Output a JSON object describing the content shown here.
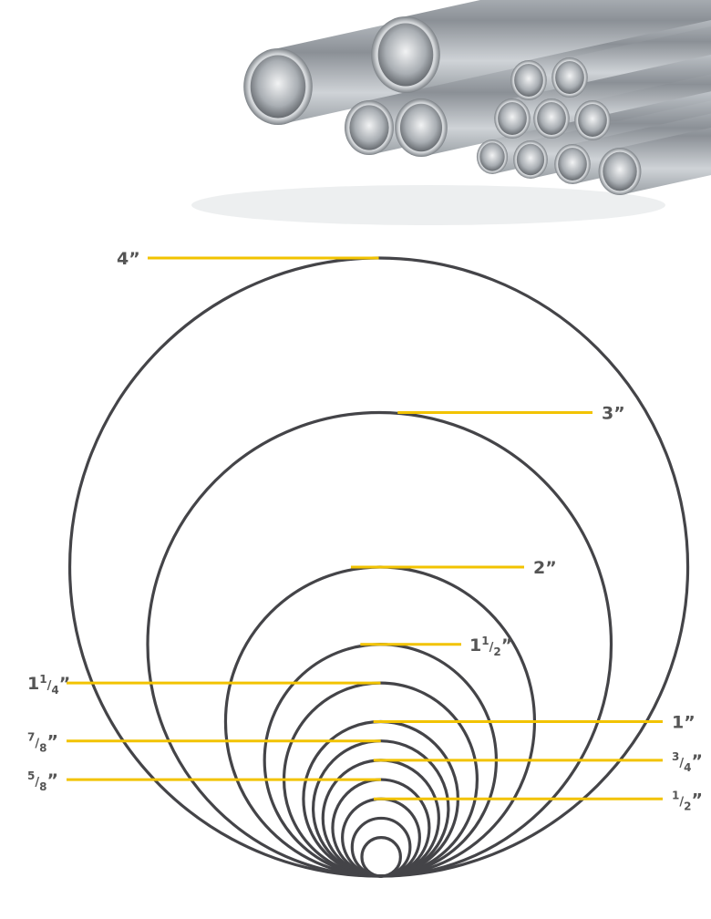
{
  "colors": {
    "circle": "#444448",
    "leader": "#f2c300",
    "label": "#555555"
  },
  "photo": {
    "subject": "stainless steel tubes stacked, various diameters",
    "icon": "steel-tubes-photo"
  },
  "sizes": [
    {
      "id": "4in",
      "whole": "4",
      "num": "",
      "den": "",
      "quote": "”",
      "diameter_in": 4.0,
      "side": "left"
    },
    {
      "id": "3in",
      "whole": "3",
      "num": "",
      "den": "",
      "quote": "”",
      "diameter_in": 3.0,
      "side": "right"
    },
    {
      "id": "2in",
      "whole": "2",
      "num": "",
      "den": "",
      "quote": "”",
      "diameter_in": 2.0,
      "side": "right"
    },
    {
      "id": "1-1-2in",
      "whole": "1",
      "num": "1",
      "den": "2",
      "quote": "”",
      "diameter_in": 1.5,
      "side": "right"
    },
    {
      "id": "1-1-4in",
      "whole": "1",
      "num": "1",
      "den": "4",
      "quote": "”",
      "diameter_in": 1.25,
      "side": "left"
    },
    {
      "id": "1in",
      "whole": "1",
      "num": "",
      "den": "",
      "quote": "”",
      "diameter_in": 1.0,
      "side": "right"
    },
    {
      "id": "7-8in",
      "whole": "",
      "num": "7",
      "den": "8",
      "quote": "”",
      "diameter_in": 0.875,
      "side": "left"
    },
    {
      "id": "3-4in",
      "whole": "",
      "num": "3",
      "den": "4",
      "quote": "”",
      "diameter_in": 0.75,
      "side": "right"
    },
    {
      "id": "5-8in",
      "whole": "",
      "num": "5",
      "den": "8",
      "quote": "”",
      "diameter_in": 0.625,
      "side": "left"
    },
    {
      "id": "1-2in",
      "whole": "",
      "num": "1",
      "den": "2",
      "quote": "”",
      "diameter_in": 0.5,
      "side": "right"
    }
  ],
  "unlabeled_sizes_in": [
    0.375,
    0.25
  ]
}
